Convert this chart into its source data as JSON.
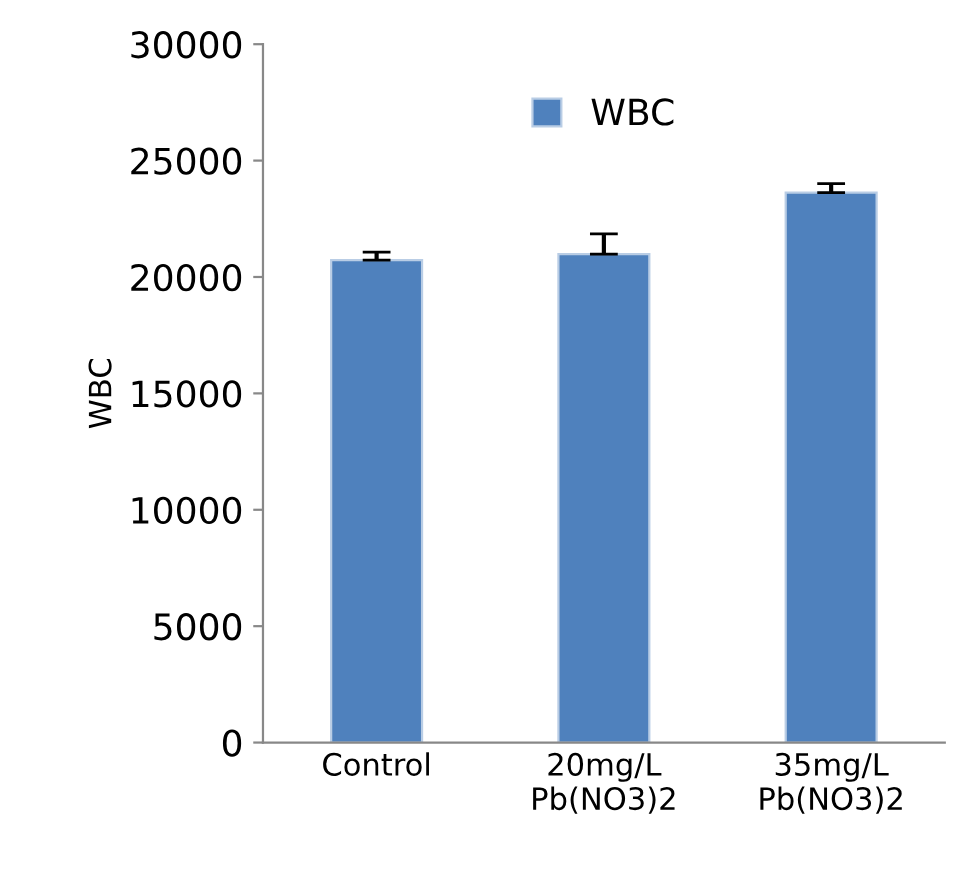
{
  "chart_data": {
    "type": "bar",
    "ylabel": "WBC",
    "categories": [
      "Control",
      "20mg/L\nPb(NO3)2",
      "35mg/L\nPb(NO3)2"
    ],
    "series": [
      {
        "name": "WBC",
        "color": "#4f81bd",
        "values": [
          20720,
          20980,
          23620
        ],
        "errors": [
          [
            20720,
            21070
          ],
          [
            20980,
            21850
          ],
          [
            23620,
            24010
          ]
        ]
      }
    ],
    "ylim": [
      0,
      30000
    ],
    "yticks": [
      0,
      5000,
      10000,
      15000,
      20000,
      25000,
      30000
    ],
    "grid": false,
    "legend": "top"
  }
}
